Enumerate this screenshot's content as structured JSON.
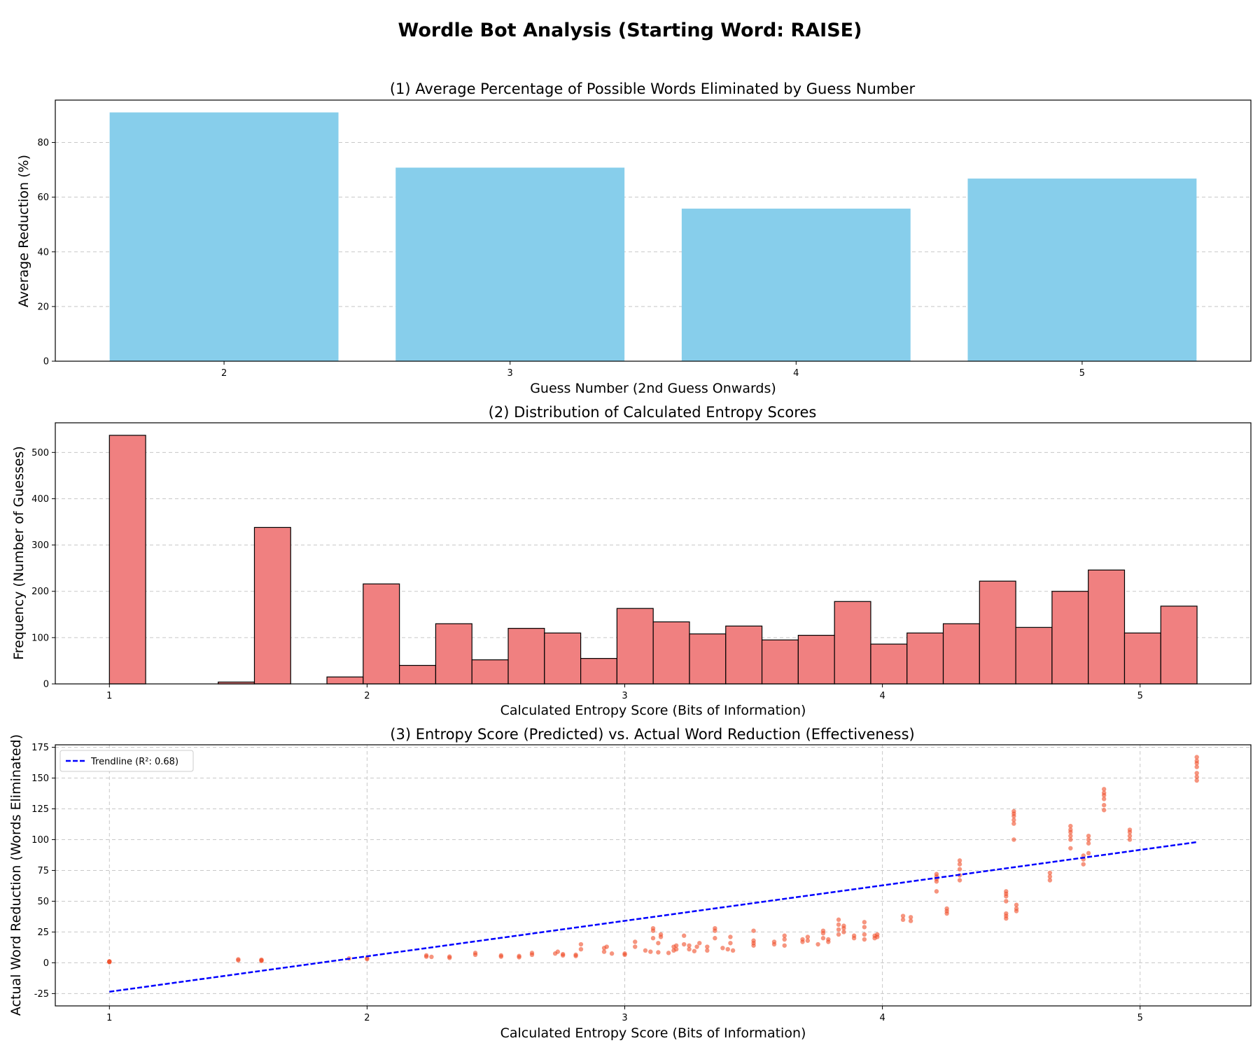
{
  "figure": {
    "title": "Wordle Bot Analysis (Starting Word: RAISE)"
  },
  "colors": {
    "bar": "#87ceeb",
    "hist": "#f08080",
    "scatter": "#f04e2a",
    "trend": "#0000ff"
  },
  "chart_data": [
    {
      "type": "bar",
      "title": "(1) Average Percentage of Possible Words Eliminated by Guess Number",
      "xlabel": "Guess Number (2nd Guess Onwards)",
      "ylabel": "Average Reduction (%)",
      "categories": [
        "2",
        "3",
        "4",
        "5"
      ],
      "values": [
        91,
        70.8,
        55.8,
        66.8
      ],
      "xlim": [
        1.41,
        5.59
      ],
      "ylim": [
        0,
        95.5
      ],
      "yticks": [
        0,
        20,
        40,
        60,
        80
      ],
      "grid": "y"
    },
    {
      "type": "bar",
      "title": "(2) Distribution of Calculated Entropy Scores",
      "xlabel": "Calculated Entropy Score (Bits of Information)",
      "ylabel": "Frequency (Number of Guesses)",
      "bin_start": 1.0,
      "bin_width": 0.1407,
      "counts": [
        537,
        0,
        0,
        4,
        338,
        0,
        15,
        216,
        40,
        130,
        52,
        120,
        110,
        55,
        163,
        134,
        108,
        125,
        95,
        105,
        178,
        86,
        110,
        130,
        222,
        122,
        200,
        246,
        110,
        168
      ],
      "xlim": [
        0.79,
        5.43
      ],
      "ylim": [
        0,
        564
      ],
      "xticks": [
        1,
        2,
        3,
        4,
        5
      ],
      "yticks": [
        0,
        100,
        200,
        300,
        400,
        500
      ],
      "grid": "y"
    },
    {
      "type": "scatter",
      "title": "(3) Entropy Score (Predicted) vs. Actual Word Reduction (Effectiveness)",
      "xlabel": "Calculated Entropy Score (Bits of Information)",
      "ylabel": "Actual Word Reduction (Words Eliminated)",
      "xlim": [
        0.79,
        5.43
      ],
      "ylim": [
        -35,
        177
      ],
      "xticks": [
        1,
        2,
        3,
        4,
        5
      ],
      "yticks": [
        -25,
        0,
        25,
        50,
        75,
        100,
        125,
        150,
        175
      ],
      "grid": "both",
      "legend": {
        "position": "top-left",
        "label": "Trendline (R²: 0.68)"
      },
      "trendline": {
        "x": [
          1.0,
          5.22
        ],
        "y": [
          -23.5,
          98
        ]
      },
      "points": [
        [
          1.0,
          0.5
        ],
        [
          1.0,
          1.0
        ],
        [
          1.0,
          1.2
        ],
        [
          1.0,
          0.8
        ],
        [
          1.5,
          2.0
        ],
        [
          1.5,
          2.8
        ],
        [
          1.59,
          1.5
        ],
        [
          1.59,
          2.0
        ],
        [
          1.59,
          2.5
        ],
        [
          1.93,
          3.5
        ],
        [
          2.0,
          3.0
        ],
        [
          2.0,
          3.8
        ],
        [
          2.23,
          5.0
        ],
        [
          2.23,
          6.0
        ],
        [
          2.25,
          4.8
        ],
        [
          2.32,
          4.0
        ],
        [
          2.32,
          5.0
        ],
        [
          2.42,
          6.5
        ],
        [
          2.42,
          8.0
        ],
        [
          2.52,
          5.0
        ],
        [
          2.52,
          6.0
        ],
        [
          2.59,
          4.5
        ],
        [
          2.59,
          5.5
        ],
        [
          2.64,
          6.5
        ],
        [
          2.64,
          8.0
        ],
        [
          2.73,
          7.5
        ],
        [
          2.74,
          9.0
        ],
        [
          2.76,
          6.0
        ],
        [
          2.76,
          7.0
        ],
        [
          2.81,
          5.5
        ],
        [
          2.81,
          6.5
        ],
        [
          2.83,
          11.0
        ],
        [
          2.83,
          15.0
        ],
        [
          2.92,
          9.0
        ],
        [
          2.92,
          12.0
        ],
        [
          2.93,
          13.0
        ],
        [
          2.95,
          7.5
        ],
        [
          3.0,
          6.5
        ],
        [
          3.0,
          7.5
        ],
        [
          3.04,
          13.0
        ],
        [
          3.04,
          17.0
        ],
        [
          3.08,
          10.0
        ],
        [
          3.1,
          9.0
        ],
        [
          3.11,
          20.0
        ],
        [
          3.11,
          26.0
        ],
        [
          3.11,
          28.0
        ],
        [
          3.13,
          8.5
        ],
        [
          3.13,
          16.0
        ],
        [
          3.14,
          21.0
        ],
        [
          3.14,
          23.0
        ],
        [
          3.17,
          8.0
        ],
        [
          3.19,
          10.0
        ],
        [
          3.19,
          13.0
        ],
        [
          3.2,
          11.0
        ],
        [
          3.2,
          14.0
        ],
        [
          3.23,
          15.0
        ],
        [
          3.23,
          22.0
        ],
        [
          3.25,
          11.0
        ],
        [
          3.25,
          14.0
        ],
        [
          3.27,
          9.5
        ],
        [
          3.28,
          13.0
        ],
        [
          3.29,
          16.0
        ],
        [
          3.32,
          10.0
        ],
        [
          3.32,
          13.0
        ],
        [
          3.35,
          20.0
        ],
        [
          3.35,
          26.0
        ],
        [
          3.35,
          28.0
        ],
        [
          3.38,
          12.0
        ],
        [
          3.4,
          11.0
        ],
        [
          3.41,
          16.0
        ],
        [
          3.41,
          21.0
        ],
        [
          3.42,
          10.0
        ],
        [
          3.5,
          14.0
        ],
        [
          3.5,
          16.0
        ],
        [
          3.5,
          18.0
        ],
        [
          3.5,
          26.0
        ],
        [
          3.58,
          15.0
        ],
        [
          3.58,
          17.0
        ],
        [
          3.62,
          14.0
        ],
        [
          3.62,
          19.0
        ],
        [
          3.62,
          22.0
        ],
        [
          3.69,
          17.0
        ],
        [
          3.69,
          19.0
        ],
        [
          3.71,
          18.0
        ],
        [
          3.71,
          21.0
        ],
        [
          3.75,
          15.0
        ],
        [
          3.77,
          20.0
        ],
        [
          3.77,
          24.0
        ],
        [
          3.77,
          26.0
        ],
        [
          3.79,
          17.0
        ],
        [
          3.79,
          19.0
        ],
        [
          3.83,
          23.0
        ],
        [
          3.83,
          27.0
        ],
        [
          3.83,
          31.0
        ],
        [
          3.83,
          35.0
        ],
        [
          3.85,
          25.0
        ],
        [
          3.85,
          28.0
        ],
        [
          3.85,
          30.0
        ],
        [
          3.89,
          20.0
        ],
        [
          3.89,
          22.0
        ],
        [
          3.93,
          19.0
        ],
        [
          3.93,
          23.0
        ],
        [
          3.93,
          29.0
        ],
        [
          3.93,
          33.0
        ],
        [
          3.97,
          20.0
        ],
        [
          3.97,
          22.0
        ],
        [
          3.98,
          21.0
        ],
        [
          3.98,
          23.0
        ],
        [
          4.08,
          35.0
        ],
        [
          4.08,
          38.0
        ],
        [
          4.11,
          34.0
        ],
        [
          4.11,
          37.0
        ],
        [
          4.21,
          58.0
        ],
        [
          4.21,
          66.0
        ],
        [
          4.21,
          68.0
        ],
        [
          4.21,
          70.0
        ],
        [
          4.21,
          72.0
        ],
        [
          4.25,
          40.0
        ],
        [
          4.25,
          42.0
        ],
        [
          4.25,
          44.0
        ],
        [
          4.3,
          67.0
        ],
        [
          4.3,
          71.0
        ],
        [
          4.3,
          76.0
        ],
        [
          4.3,
          80.0
        ],
        [
          4.3,
          83.0
        ],
        [
          4.48,
          36.0
        ],
        [
          4.48,
          38.0
        ],
        [
          4.48,
          40.0
        ],
        [
          4.48,
          50.0
        ],
        [
          4.48,
          54.0
        ],
        [
          4.48,
          56.0
        ],
        [
          4.48,
          58.0
        ],
        [
          4.51,
          100.0
        ],
        [
          4.51,
          113.0
        ],
        [
          4.51,
          116.0
        ],
        [
          4.51,
          119.0
        ],
        [
          4.51,
          121.0
        ],
        [
          4.51,
          123.0
        ],
        [
          4.52,
          42.0
        ],
        [
          4.52,
          44.0
        ],
        [
          4.52,
          47.0
        ],
        [
          4.65,
          67.0
        ],
        [
          4.65,
          70.0
        ],
        [
          4.65,
          73.0
        ],
        [
          4.73,
          93.0
        ],
        [
          4.73,
          100.0
        ],
        [
          4.73,
          103.0
        ],
        [
          4.73,
          106.0
        ],
        [
          4.73,
          108.0
        ],
        [
          4.73,
          111.0
        ],
        [
          4.78,
          80.0
        ],
        [
          4.78,
          84.0
        ],
        [
          4.78,
          87.0
        ],
        [
          4.8,
          89.0
        ],
        [
          4.8,
          97.0
        ],
        [
          4.8,
          100.0
        ],
        [
          4.8,
          103.0
        ],
        [
          4.86,
          124.0
        ],
        [
          4.86,
          128.0
        ],
        [
          4.86,
          133.0
        ],
        [
          4.86,
          136.0
        ],
        [
          4.86,
          138.0
        ],
        [
          4.86,
          141.0
        ],
        [
          4.96,
          100.0
        ],
        [
          4.96,
          103.0
        ],
        [
          4.96,
          106.0
        ],
        [
          4.96,
          108.0
        ],
        [
          5.22,
          148.0
        ],
        [
          5.22,
          151.0
        ],
        [
          5.22,
          154.0
        ],
        [
          5.22,
          159.0
        ],
        [
          5.22,
          162.0
        ],
        [
          5.22,
          164.0
        ],
        [
          5.22,
          167.0
        ]
      ]
    }
  ]
}
